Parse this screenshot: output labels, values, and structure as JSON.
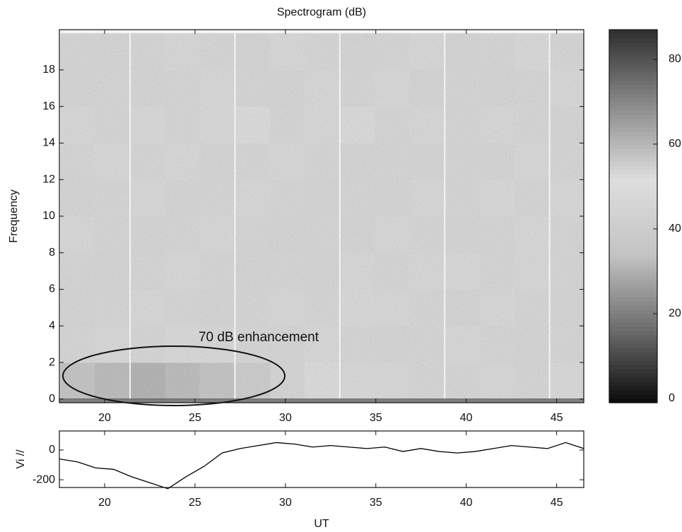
{
  "chart_data": [
    {
      "type": "heatmap",
      "title": "Spectrogram (dB)",
      "y_label": "Frequency",
      "annotation": "70 dB enhancement",
      "x": [
        18.5,
        20.4,
        22.4,
        24.3,
        26.2,
        28.2,
        30.1,
        32.0,
        34.0,
        35.9,
        37.8,
        39.8,
        41.7,
        43.6,
        45.6
      ],
      "y": [
        1,
        3,
        5,
        7,
        9,
        11,
        13,
        15,
        17,
        19
      ],
      "z": [
        [
          58,
          60,
          62,
          60,
          58,
          56,
          54,
          50,
          48,
          47,
          46,
          46,
          47,
          46,
          48
        ],
        [
          46,
          47,
          46,
          48,
          47,
          46,
          45,
          47,
          46,
          45,
          46,
          47,
          46,
          45,
          46
        ],
        [
          45,
          46,
          47,
          46,
          45,
          46,
          47,
          46,
          48,
          47,
          46,
          45,
          47,
          46,
          45
        ],
        [
          46,
          45,
          46,
          47,
          46,
          45,
          46,
          45,
          47,
          46,
          47,
          48,
          46,
          47,
          46
        ],
        [
          47,
          46,
          45,
          46,
          47,
          46,
          45,
          46,
          45,
          47,
          46,
          45,
          46,
          47,
          46
        ],
        [
          45,
          46,
          47,
          45,
          46,
          47,
          46,
          45,
          46,
          45,
          47,
          46,
          48,
          46,
          47
        ],
        [
          46,
          47,
          46,
          47,
          45,
          46,
          47,
          46,
          45,
          46,
          45,
          46,
          45,
          47,
          46
        ],
        [
          47,
          46,
          48,
          46,
          47,
          50,
          46,
          47,
          49,
          46,
          47,
          46,
          47,
          46,
          45
        ],
        [
          45,
          46,
          45,
          46,
          47,
          46,
          45,
          47,
          46,
          47,
          45,
          46,
          45,
          46,
          47
        ],
        [
          46,
          45,
          46,
          47,
          46,
          45,
          47,
          46,
          45,
          46,
          47,
          45,
          46,
          48,
          46
        ]
      ],
      "xlim": [
        17.5,
        46.5
      ],
      "ylim": [
        -0.2,
        20.2
      ],
      "xticks": [
        20,
        25,
        30,
        35,
        40,
        45
      ],
      "yticks": [
        0,
        2,
        4,
        6,
        8,
        10,
        12,
        14,
        16,
        18
      ],
      "clim": [
        -1,
        87
      ],
      "cticks": [
        0,
        20,
        40,
        60,
        80
      ],
      "colormap": [
        "#0a0a0a",
        "#6e6e6e",
        "#c4c4c4",
        "#dedede",
        "#8a8a8a",
        "#2e2e2e"
      ]
    },
    {
      "type": "line",
      "x_label": "UT",
      "y_label": "Vi //",
      "x": [
        17.5,
        18.5,
        19.5,
        20.5,
        21.5,
        22.5,
        23.5,
        24.5,
        25.5,
        26.5,
        27.5,
        28.5,
        29.5,
        30.5,
        31.5,
        32.5,
        33.5,
        34.5,
        35.5,
        36.5,
        37.5,
        38.5,
        39.5,
        40.5,
        41.5,
        42.5,
        43.5,
        44.5,
        45.5,
        46.5
      ],
      "series": [
        {
          "name": "Vi //",
          "color": "#000000",
          "values": [
            -60,
            -80,
            -120,
            -130,
            -180,
            -220,
            -260,
            -180,
            -110,
            -20,
            10,
            30,
            50,
            40,
            20,
            30,
            20,
            10,
            20,
            -10,
            10,
            -10,
            -20,
            -10,
            10,
            30,
            20,
            10,
            50,
            10
          ]
        }
      ],
      "xlim": [
        17.5,
        46.5
      ],
      "ylim": [
        -252,
        128
      ],
      "xticks": [
        20,
        25,
        30,
        35,
        40,
        45
      ],
      "yticks": [
        0,
        -200
      ]
    }
  ]
}
